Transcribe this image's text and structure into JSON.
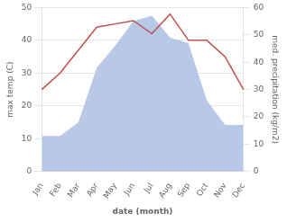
{
  "chart_data": {
    "type": "line",
    "categories": [
      "Jan",
      "Feb",
      "Mar",
      "Apr",
      "May",
      "Jun",
      "Jul",
      "Aug",
      "Sep",
      "Oct",
      "Nov",
      "Dec"
    ],
    "series": [
      {
        "type": "area",
        "color": "#b8c9e8",
        "axis": "y2",
        "values": [
          13,
          13,
          18,
          38,
          46,
          55,
          57,
          49,
          47,
          26,
          17,
          17
        ]
      },
      {
        "type": "line",
        "color": "#c0504d",
        "values": [
          25,
          30,
          37,
          44,
          45,
          46,
          42,
          48,
          40,
          40,
          35,
          25
        ]
      }
    ],
    "xlabel": "date (month)",
    "ylabel": "max temp (C)",
    "y2label": "med. precipitation (kg/m2)",
    "ylim": [
      0,
      50
    ],
    "yticks": [
      0,
      10,
      20,
      30,
      40,
      50
    ],
    "y2lim": [
      0,
      60
    ],
    "y2ticks": [
      0,
      10,
      20,
      30,
      40,
      50,
      60
    ],
    "grid": true
  }
}
